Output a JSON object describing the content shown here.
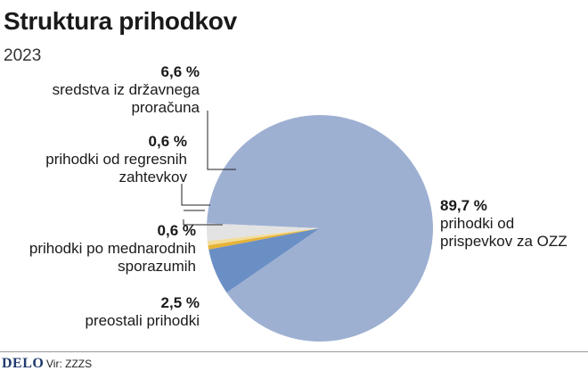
{
  "title": "Struktura prihodkov",
  "subtitle": "2023",
  "footer": {
    "logo": "DELO",
    "source": "Vir: ZZZS"
  },
  "colors": {
    "prispevki": "#9db0d2",
    "drzavni": "#6a8fc5",
    "regresni": "#e6b336",
    "mednarodni": "#f2dc9a",
    "preostali": "#e3e3e3",
    "leader": "#222222"
  },
  "chart_data": {
    "type": "pie",
    "title": "Struktura prihodkov",
    "subtitle": "2023",
    "unit": "%",
    "slices": [
      {
        "value": 89.7,
        "value_label": "89,7 %",
        "lines": [
          "prihodki od",
          "prispevkov za OZZ"
        ],
        "color_key": "prispevki"
      },
      {
        "value": 6.6,
        "value_label": "6,6 %",
        "lines": [
          "sredstva iz državnega",
          "proračuna"
        ],
        "color_key": "drzavni"
      },
      {
        "value": 0.6,
        "value_label": "0,6 %",
        "lines": [
          "prihodki od regresnih",
          "zahtevkov"
        ],
        "color_key": "regresni"
      },
      {
        "value": 0.6,
        "value_label": "0,6 %",
        "lines": [
          "prihodki po mednarodnih",
          "sporazumih"
        ],
        "color_key": "mednarodni"
      },
      {
        "value": 2.5,
        "value_label": "2,5 %",
        "lines": [
          "preostali prihodki"
        ],
        "color_key": "preostali"
      }
    ]
  }
}
